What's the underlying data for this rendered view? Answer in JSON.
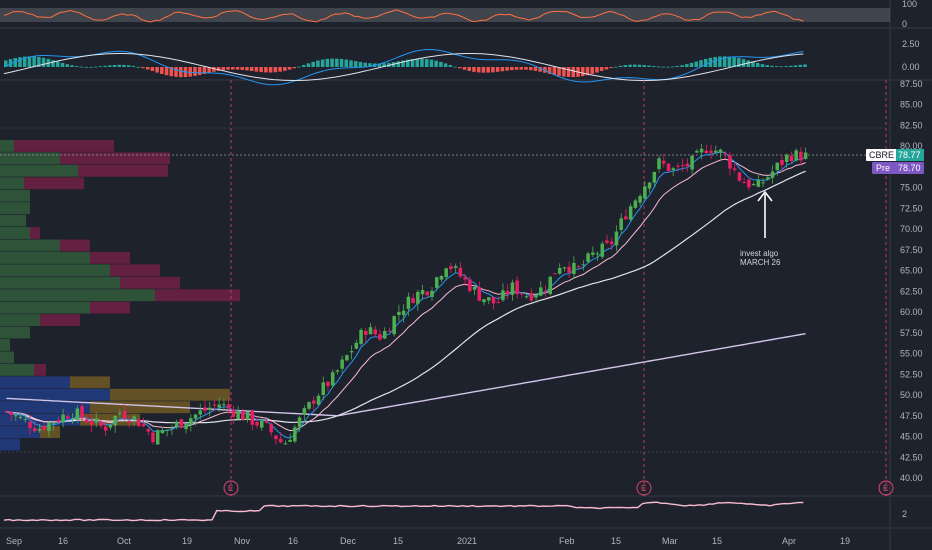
{
  "symbol": "CBRE",
  "last_price": "78.77",
  "pre_label": "Pre",
  "pre_price": "78.70",
  "annotation": {
    "line1": "invest algo",
    "line2": "MARCH 26"
  },
  "earnings_marker": "E",
  "rsi_panel": {
    "ticks": [
      "100",
      "0"
    ]
  },
  "macd_panel": {
    "ticks": [
      "2.50",
      "0.00"
    ]
  },
  "price_panel": {
    "ticks": [
      "87.50",
      "85.00",
      "82.50",
      "80.00",
      "77.50",
      "75.00",
      "72.50",
      "70.00",
      "67.50",
      "65.00",
      "62.50",
      "60.00",
      "57.50",
      "55.00",
      "52.50",
      "50.00",
      "47.50",
      "45.00",
      "42.50",
      "40.00"
    ]
  },
  "bottom_panel": {
    "ticks": [
      "2"
    ]
  },
  "x_axis": {
    "labels": [
      "Sep",
      "16",
      "Oct",
      "19",
      "Nov",
      "16",
      "Dec",
      "15",
      "2021",
      "Feb",
      "15",
      "Mar",
      "15",
      "Apr",
      "19"
    ]
  },
  "colors": {
    "background": "#1e222d",
    "up": "#26a69a",
    "down": "#ef5350",
    "up_candle": "#4caf50",
    "down_candle": "#e91e63",
    "ema_fast": "#2196f3",
    "ema_slow": "#f8bbd0",
    "sma_long": "#d1c4e9",
    "rsi_line": "#ff7043",
    "pre_tag": "#7e57c2"
  },
  "chart_data": {
    "type": "candlestick",
    "y_range": [
      40,
      87.5
    ],
    "x_range_labels": [
      "Sep",
      "Apr"
    ],
    "grid": false,
    "series": [
      {
        "name": "CBRE",
        "close_approx": [
          48,
          47,
          46,
          47,
          48,
          47,
          46,
          48,
          47,
          45,
          46,
          47,
          48,
          49,
          48,
          47,
          46,
          44,
          47,
          50,
          52,
          55,
          58,
          57,
          60,
          62,
          63,
          66,
          64,
          62,
          61,
          63,
          62,
          63,
          66,
          65,
          67,
          68,
          72,
          75,
          78,
          77,
          78,
          80,
          79,
          76,
          75,
          77,
          79,
          78.8
        ]
      }
    ],
    "volume_profile": true,
    "indicators": [
      "RSI",
      "MACD",
      "EMA",
      "SMA"
    ]
  }
}
